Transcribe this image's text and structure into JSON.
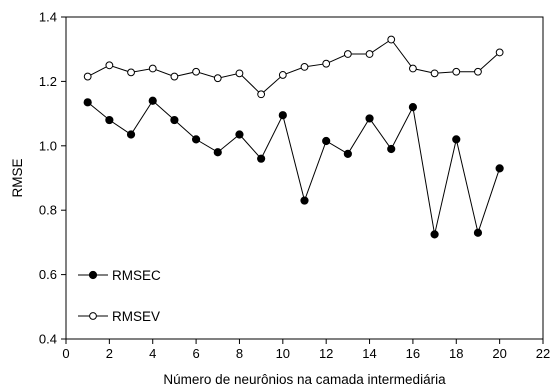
{
  "chart_data": {
    "type": "line",
    "title": "",
    "xlabel": "Número de neurônios na camada intermediária",
    "ylabel": "RMSE",
    "xlim": [
      0,
      22
    ],
    "ylim": [
      0.4,
      1.4
    ],
    "xticks": [
      0,
      2,
      4,
      6,
      8,
      10,
      12,
      14,
      16,
      18,
      20,
      22
    ],
    "yticks": [
      0.4,
      0.6,
      0.8,
      1.0,
      1.2,
      1.4
    ],
    "ytick_labels": [
      "0.4",
      "0.6",
      "0.8",
      "1.0",
      "1.2",
      "1.4"
    ],
    "grid": false,
    "legend_position": "bottom-left",
    "x": [
      1,
      2,
      3,
      4,
      5,
      6,
      7,
      8,
      9,
      10,
      11,
      12,
      13,
      14,
      15,
      16,
      17,
      18,
      19,
      20
    ],
    "series": [
      {
        "name": "RMSEC",
        "marker": "filled-circle",
        "color": "#000000",
        "values": [
          1.135,
          1.08,
          1.035,
          1.14,
          1.08,
          1.02,
          0.98,
          1.035,
          0.96,
          1.095,
          0.83,
          1.015,
          0.975,
          1.085,
          0.99,
          1.12,
          0.725,
          1.02,
          0.73,
          0.93
        ]
      },
      {
        "name": "RMSEV",
        "marker": "open-circle",
        "color": "#000000",
        "values": [
          1.215,
          1.25,
          1.228,
          1.24,
          1.215,
          1.23,
          1.21,
          1.225,
          1.16,
          1.22,
          1.245,
          1.255,
          1.285,
          1.285,
          1.33,
          1.24,
          1.225,
          1.23,
          1.23,
          1.29
        ]
      }
    ]
  }
}
